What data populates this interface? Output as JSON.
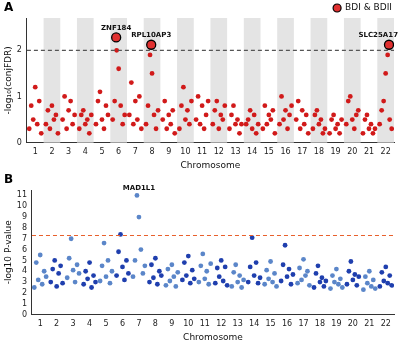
{
  "chart_data": [
    {
      "type": "scatter",
      "title": "A",
      "x_label": "Chromosome",
      "y_label": "-log₁₀(conjFDR)",
      "xlim": [
        0.5,
        22.5
      ],
      "xticks": [
        1,
        2,
        3,
        4,
        5,
        6,
        7,
        8,
        9,
        10,
        11,
        12,
        13,
        14,
        15,
        16,
        17,
        18,
        19,
        20,
        21,
        22
      ],
      "ylim": [
        0,
        2.7
      ],
      "yticks": [
        0,
        1,
        2
      ],
      "grid": false,
      "legend": "top-right",
      "hlines": [
        {
          "y": 2,
          "color": "#555555",
          "line_style": "dashed"
        }
      ],
      "series": [
        {
          "color": "#d11a1a",
          "marker": "circle",
          "x": [
            0.64,
            0.76,
            0.88,
            1,
            1.12,
            1.24,
            1.36,
            1.64,
            1.76,
            1.88,
            2,
            2.12,
            2.24,
            2.36,
            2.64,
            2.76,
            2.88,
            3,
            3.12,
            3.24,
            3.36,
            3.64,
            3.76,
            3.88,
            4,
            4.12,
            4.24,
            4.36,
            4.64,
            4.76,
            4.88,
            5,
            5.12,
            5.24,
            5.36,
            5.64,
            5.76,
            5.88,
            6,
            6.12,
            6.24,
            6.36,
            6.64,
            6.76,
            6.88,
            7,
            7.12,
            7.24,
            7.36,
            7.64,
            7.76,
            7.88,
            8,
            8.12,
            8.24,
            8.36,
            8.64,
            8.76,
            8.88,
            9,
            9.12,
            9.24,
            9.36,
            9.64,
            9.76,
            9.88,
            10,
            10.12,
            10.24,
            10.36,
            10.64,
            10.76,
            10.88,
            11,
            11.12,
            11.24,
            11.36,
            11.64,
            11.76,
            11.88,
            12,
            12.12,
            12.24,
            12.36,
            12.64,
            12.76,
            12.88,
            13,
            13.12,
            13.24,
            13.36,
            13.64,
            13.76,
            13.88,
            14,
            14.12,
            14.24,
            14.36,
            14.64,
            14.76,
            14.88,
            15,
            15.12,
            15.24,
            15.36,
            15.64,
            15.76,
            15.88,
            16,
            16.12,
            16.24,
            16.36,
            16.64,
            16.76,
            16.88,
            17,
            17.12,
            17.24,
            17.36,
            17.64,
            17.76,
            17.88,
            18,
            18.12,
            18.24,
            18.36,
            18.64,
            18.76,
            18.88,
            19,
            19.12,
            19.24,
            19.36,
            19.64,
            19.76,
            19.88,
            20,
            20.12,
            20.24,
            20.36,
            20.64,
            20.76,
            20.88,
            21,
            21.12,
            21.24,
            21.36,
            21.64,
            21.76,
            21.88,
            22,
            22.12,
            22.24,
            22.36
          ],
          "values": [
            0.3,
            0.8,
            0.5,
            1.2,
            0.4,
            0.9,
            0.2,
            0.4,
            0.7,
            0.3,
            0.8,
            0.5,
            0.6,
            0.2,
            0.5,
            1.0,
            0.3,
            0.7,
            0.9,
            0.4,
            0.6,
            0.3,
            0.6,
            0.7,
            0.4,
            0.5,
            0.2,
            0.6,
            0.4,
            0.9,
            1.1,
            0.5,
            0.3,
            0.8,
            0.6,
            0.5,
            0.9,
            2.0,
            1.6,
            0.8,
            0.4,
            0.6,
            0.6,
            1.3,
            0.4,
            0.9,
            0.5,
            1.0,
            0.3,
            0.4,
            0.8,
            1.9,
            1.5,
            0.6,
            0.3,
            0.7,
            0.5,
            0.9,
            0.3,
            0.6,
            0.4,
            0.7,
            0.2,
            0.3,
            0.8,
            1.2,
            0.5,
            0.7,
            0.4,
            0.9,
            0.5,
            1.0,
            0.4,
            0.8,
            0.3,
            0.6,
            0.9,
            0.4,
            0.7,
            0.9,
            0.3,
            0.6,
            0.5,
            0.8,
            0.3,
            0.6,
            0.8,
            0.4,
            0.5,
            0.2,
            0.4,
            0.4,
            0.5,
            0.7,
            0.3,
            0.6,
            0.2,
            0.4,
            0.3,
            0.8,
            0.4,
            0.6,
            0.5,
            0.7,
            0.2,
            0.4,
            1.0,
            0.5,
            0.7,
            0.3,
            0.6,
            0.8,
            0.5,
            0.9,
            0.3,
            0.7,
            0.4,
            0.6,
            0.2,
            0.3,
            0.6,
            0.7,
            0.4,
            0.5,
            0.2,
            0.3,
            0.2,
            0.5,
            0.6,
            0.3,
            0.4,
            0.2,
            0.5,
            0.4,
            0.9,
            1.0,
            0.5,
            0.3,
            0.6,
            0.7,
            0.2,
            0.5,
            0.6,
            0.3,
            0.4,
            0.2,
            0.3,
            0.4,
            0.7,
            0.9,
            1.5,
            1.9,
            0.5,
            0.3
          ]
        },
        {
          "name": "BDI & BDII",
          "color": "#e03030",
          "marker": "outlined",
          "x": [
            5.85,
            7.95,
            22.2
          ],
          "values": [
            2.28,
            2.12,
            2.12
          ],
          "point_labels": [
            "ZNF184",
            "RPL10AP3",
            "SLC25A17"
          ]
        }
      ]
    },
    {
      "type": "scatter",
      "title": "B",
      "x_label": "Chromosome",
      "y_label": "-log10 P-value",
      "xlim": [
        0.5,
        22.5
      ],
      "xticks": [
        1,
        2,
        3,
        4,
        5,
        6,
        7,
        8,
        9,
        10,
        11,
        12,
        13,
        14,
        15,
        16,
        17,
        18,
        19,
        20,
        21,
        22
      ],
      "ylim": [
        0,
        11.5
      ],
      "yticks": [
        0,
        1,
        2,
        3,
        4,
        5,
        6,
        7,
        8,
        9,
        10,
        11
      ],
      "grid": false,
      "hlines": [
        {
          "y": 7.3,
          "color": "#e8602c",
          "line_style": "dashed"
        }
      ],
      "annotations": [
        {
          "text": "MAD1L1",
          "x": 7.0,
          "y": 11.0
        }
      ],
      "series": [
        {
          "color": "#5b86c9",
          "marker": "circle",
          "x": [
            0.64,
            0.76,
            0.88,
            1,
            1.12,
            1.24,
            1.36,
            2.64,
            2.76,
            2.88,
            3,
            3.12,
            3.24,
            3.36,
            4.64,
            4.76,
            4.88,
            5,
            5.12,
            5.24,
            5.36,
            6.64,
            6.76,
            6.88,
            7,
            7.12,
            7.24,
            7.36,
            8.64,
            8.76,
            8.88,
            9,
            9.12,
            9.24,
            9.36,
            10.64,
            10.76,
            10.88,
            11,
            11.12,
            11.24,
            11.36,
            12.64,
            12.76,
            12.88,
            13,
            13.12,
            13.24,
            13.36,
            14.64,
            14.76,
            14.88,
            15,
            15.12,
            15.24,
            15.36,
            16.64,
            16.76,
            16.88,
            17,
            17.12,
            17.24,
            17.36,
            18.64,
            18.76,
            18.88,
            19,
            19.12,
            19.24,
            19.36,
            20.64,
            20.76,
            20.88,
            21,
            21.12,
            21.24,
            21.36
          ],
          "values": [
            2.5,
            4.8,
            3.2,
            5.5,
            2.8,
            4.0,
            3.5,
            3.4,
            5.2,
            7.0,
            4.1,
            3.0,
            4.6,
            3.8,
            3.1,
            4.5,
            6.6,
            3.5,
            5.0,
            2.9,
            4.0,
            3.5,
            5.0,
            11.0,
            9.0,
            6.0,
            3.8,
            4.5,
            2.7,
            4.2,
            3.1,
            4.6,
            3.5,
            2.6,
            3.9,
            3.0,
            4.5,
            5.6,
            3.3,
            4.0,
            2.8,
            4.7,
            2.6,
            3.9,
            4.6,
            3.0,
            3.6,
            2.5,
            3.2,
            2.8,
            4.1,
            3.3,
            4.9,
            3.0,
            3.8,
            2.6,
            2.9,
            4.3,
            3.2,
            5.1,
            3.6,
            4.0,
            2.7,
            2.4,
            3.6,
            3.0,
            4.2,
            2.8,
            3.3,
            2.5,
            2.3,
            3.5,
            2.9,
            4.0,
            2.6,
            3.2,
            2.4
          ]
        },
        {
          "color": "#1f3fae",
          "marker": "circle",
          "x": [
            1.64,
            1.76,
            1.88,
            2,
            2.12,
            2.24,
            2.36,
            3.64,
            3.76,
            3.88,
            4,
            4.12,
            4.24,
            4.36,
            5.64,
            5.76,
            5.88,
            6,
            6.12,
            6.24,
            6.36,
            7.64,
            7.76,
            7.88,
            8,
            8.12,
            8.24,
            8.36,
            9.64,
            9.76,
            9.88,
            10,
            10.12,
            10.24,
            10.36,
            11.64,
            11.76,
            11.88,
            12,
            12.12,
            12.24,
            12.36,
            13.64,
            13.76,
            13.88,
            14,
            14.12,
            14.24,
            14.36,
            15.64,
            15.76,
            15.88,
            16,
            16.12,
            16.24,
            16.36,
            17.64,
            17.76,
            17.88,
            18,
            18.12,
            18.24,
            18.36,
            19.64,
            19.76,
            19.88,
            20,
            20.12,
            20.24,
            20.36,
            21.64,
            21.76,
            21.88,
            22,
            22.12,
            22.24,
            22.36
          ],
          "values": [
            3.0,
            4.2,
            5.0,
            2.6,
            3.8,
            4.5,
            2.9,
            2.8,
            4.0,
            3.3,
            4.8,
            2.5,
            3.6,
            3.0,
            3.6,
            5.8,
            7.4,
            4.4,
            3.2,
            5.0,
            3.8,
            3.0,
            4.6,
            3.4,
            5.2,
            2.8,
            4.0,
            3.6,
            3.2,
            4.8,
            3.6,
            5.4,
            2.9,
            4.1,
            3.3,
            2.9,
            4.3,
            3.5,
            5.0,
            3.1,
            4.4,
            2.7,
            3.0,
            4.4,
            7.1,
            3.6,
            4.8,
            2.9,
            3.4,
            3.1,
            4.6,
            6.4,
            3.5,
            4.2,
            2.8,
            3.7,
            2.5,
            3.8,
            4.5,
            3.0,
            3.4,
            2.6,
            3.1,
            2.8,
            4.0,
            4.9,
            3.2,
            3.7,
            2.7,
            3.5,
            2.6,
            3.9,
            3.1,
            4.4,
            2.9,
            3.6,
            2.7
          ]
        }
      ]
    }
  ]
}
